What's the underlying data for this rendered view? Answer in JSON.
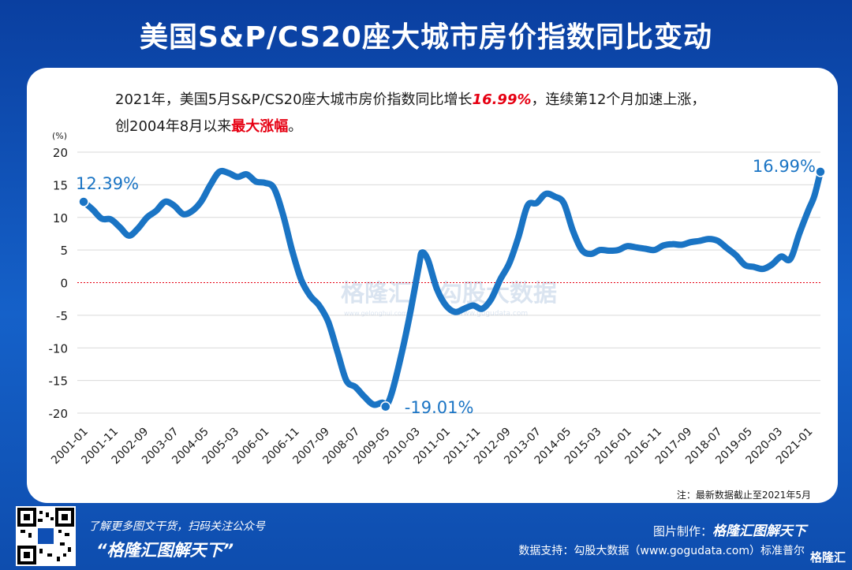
{
  "title": "美国S&P/CS20座大城市房价指数同比变动",
  "subtitle": {
    "line1_prefix": "2021年，美国5月S&P/CS20座大城市房价指数同比增长",
    "line1_highlight": "16.99%",
    "line1_suffix": "，连续第12个月加速上涨，",
    "line2_prefix": "创2004年8月以来",
    "line2_highlight": "最大涨幅",
    "line2_suffix": "。"
  },
  "note": "注：最新数据截止至2021年5月",
  "footer": {
    "line1": "了解更多图文干货，扫码关注公众号",
    "line2": "“格隆汇图解天下”",
    "credit_label": "图片制作：",
    "credit_brand": "格隆汇图解天下",
    "source": "数据支持：勾股大数据（www.gogudata.com）标准普尔",
    "brand_mark": "格隆汇"
  },
  "watermark": {
    "left": "格隆汇",
    "left_small": "www.gelonghui.com",
    "right": "勾股大数据",
    "right_small": "www.gogudata.com"
  },
  "colors": {
    "line": "#1a74c4",
    "zero_line": "#e60012",
    "header_bg": "#0f4fb4",
    "label": "#1a74c4"
  },
  "chart_data": {
    "type": "line",
    "ylabel": "(%)",
    "ylim": [
      -20,
      20
    ],
    "yticks": [
      20,
      15,
      10,
      5,
      0,
      -5,
      -10,
      -15,
      -20
    ],
    "x_tick_labels": [
      "2001-01",
      "2001-11",
      "2002-09",
      "2003-07",
      "2004-05",
      "2005-03",
      "2006-01",
      "2006-11",
      "2007-09",
      "2008-07",
      "2009-05",
      "2010-03",
      "2011-01",
      "2011-11",
      "2012-09",
      "2013-07",
      "2014-05",
      "2015-03",
      "2016-01",
      "2016-11",
      "2017-09",
      "2018-07",
      "2019-05",
      "2020-03",
      "2021-01"
    ],
    "grid": true,
    "reference_line": 0,
    "annotations": [
      {
        "text": "12.39%",
        "x": "2001-01",
        "y": 12.39
      },
      {
        "text": "-19.01%",
        "x": "2009-05",
        "y": -19.01
      },
      {
        "text": "16.99%",
        "x": "2021-05",
        "y": 16.99
      }
    ],
    "series": [
      {
        "values": [
          [
            "2001-01",
            12.39
          ],
          [
            "2001-04",
            11.2
          ],
          [
            "2001-07",
            9.8
          ],
          [
            "2001-10",
            9.7
          ],
          [
            "2002-01",
            8.5
          ],
          [
            "2002-04",
            7.2
          ],
          [
            "2002-07",
            8.3
          ],
          [
            "2002-10",
            10.0
          ],
          [
            "2003-01",
            11.0
          ],
          [
            "2003-04",
            12.4
          ],
          [
            "2003-07",
            11.8
          ],
          [
            "2003-10",
            10.5
          ],
          [
            "2004-01",
            11.0
          ],
          [
            "2004-04",
            12.5
          ],
          [
            "2004-07",
            15.0
          ],
          [
            "2004-10",
            17.0
          ],
          [
            "2005-01",
            16.8
          ],
          [
            "2005-04",
            16.2
          ],
          [
            "2005-07",
            16.6
          ],
          [
            "2005-10",
            15.5
          ],
          [
            "2006-01",
            15.3
          ],
          [
            "2006-04",
            14.5
          ],
          [
            "2006-07",
            10.5
          ],
          [
            "2006-10",
            5.0
          ],
          [
            "2007-01",
            0.5
          ],
          [
            "2007-04",
            -2.0
          ],
          [
            "2007-07",
            -3.5
          ],
          [
            "2007-10",
            -6.0
          ],
          [
            "2008-01",
            -10.5
          ],
          [
            "2008-04",
            -15.0
          ],
          [
            "2008-07",
            -16.0
          ],
          [
            "2008-10",
            -17.5
          ],
          [
            "2009-01",
            -18.7
          ],
          [
            "2009-04",
            -18.4
          ],
          [
            "2009-05",
            -19.01
          ],
          [
            "2009-07",
            -17.0
          ],
          [
            "2009-10",
            -11.5
          ],
          [
            "2010-01",
            -5.0
          ],
          [
            "2010-04",
            2.5
          ],
          [
            "2010-05",
            4.6
          ],
          [
            "2010-07",
            3.5
          ],
          [
            "2010-10",
            -1.0
          ],
          [
            "2011-01",
            -3.5
          ],
          [
            "2011-04",
            -4.5
          ],
          [
            "2011-07",
            -4.0
          ],
          [
            "2011-10",
            -3.5
          ],
          [
            "2012-01",
            -4.0
          ],
          [
            "2012-04",
            -2.5
          ],
          [
            "2012-07",
            0.5
          ],
          [
            "2012-10",
            3.0
          ],
          [
            "2013-01",
            7.0
          ],
          [
            "2013-04",
            11.8
          ],
          [
            "2013-07",
            12.2
          ],
          [
            "2013-10",
            13.6
          ],
          [
            "2014-01",
            13.2
          ],
          [
            "2014-04",
            12.2
          ],
          [
            "2014-07",
            8.0
          ],
          [
            "2014-10",
            5.0
          ],
          [
            "2015-01",
            4.4
          ],
          [
            "2015-04",
            5.0
          ],
          [
            "2015-07",
            4.9
          ],
          [
            "2015-10",
            5.0
          ],
          [
            "2016-01",
            5.6
          ],
          [
            "2016-04",
            5.4
          ],
          [
            "2016-07",
            5.2
          ],
          [
            "2016-10",
            5.0
          ],
          [
            "2017-01",
            5.7
          ],
          [
            "2017-04",
            5.9
          ],
          [
            "2017-07",
            5.8
          ],
          [
            "2017-10",
            6.2
          ],
          [
            "2018-01",
            6.4
          ],
          [
            "2018-04",
            6.7
          ],
          [
            "2018-07",
            6.4
          ],
          [
            "2018-10",
            5.3
          ],
          [
            "2019-01",
            4.2
          ],
          [
            "2019-04",
            2.7
          ],
          [
            "2019-07",
            2.4
          ],
          [
            "2019-10",
            2.1
          ],
          [
            "2020-01",
            2.8
          ],
          [
            "2020-04",
            4.0
          ],
          [
            "2020-07",
            3.6
          ],
          [
            "2020-10",
            7.5
          ],
          [
            "2021-01",
            11.1
          ],
          [
            "2021-03",
            13.3
          ],
          [
            "2021-05",
            16.99
          ]
        ]
      }
    ]
  }
}
